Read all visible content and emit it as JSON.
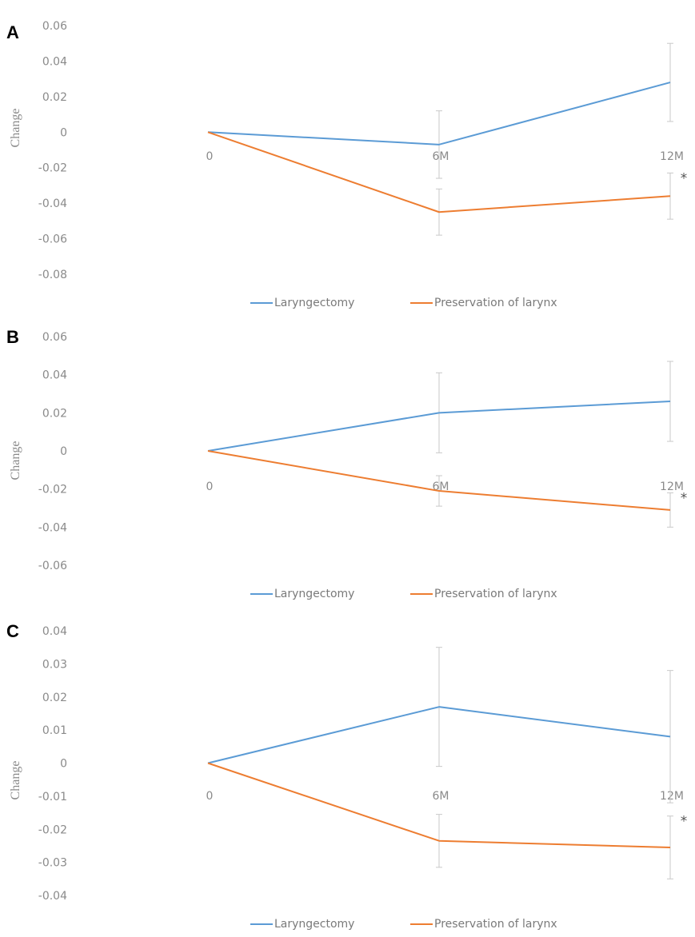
{
  "chart_data": [
    {
      "type": "line",
      "panel": "A",
      "ylabel": "Change",
      "categories": [
        "0",
        "6M",
        "12M"
      ],
      "ylim": [
        -0.08,
        0.06
      ],
      "yticks": [
        "0.06",
        "0.04",
        "0.02",
        "0",
        "-0.02",
        "-0.04",
        "-0.06",
        "-0.08"
      ],
      "series": [
        {
          "name": "Laryngectomy",
          "color": "#5b9bd5",
          "values": [
            0,
            -0.007,
            0.028
          ],
          "err": [
            0,
            0.019,
            0.022
          ]
        },
        {
          "name": "Preservation of larynx",
          "color": "#ed7d31",
          "values": [
            0,
            -0.045,
            -0.036
          ],
          "err": [
            0,
            0.013,
            0.013
          ]
        }
      ],
      "annotation": "*"
    },
    {
      "type": "line",
      "panel": "B",
      "ylabel": "Change",
      "categories": [
        "0",
        "6M",
        "12M"
      ],
      "ylim": [
        -0.06,
        0.06
      ],
      "yticks": [
        "0.06",
        "0.04",
        "0.02",
        "0",
        "-0.02",
        "-0.04",
        "-0.06"
      ],
      "series": [
        {
          "name": "Laryngectomy",
          "color": "#5b9bd5",
          "values": [
            0,
            0.02,
            0.026
          ],
          "err": [
            0,
            0.021,
            0.021
          ]
        },
        {
          "name": "Preservation of larynx",
          "color": "#ed7d31",
          "values": [
            0,
            -0.021,
            -0.031
          ],
          "err": [
            0,
            0.008,
            0.009
          ]
        }
      ],
      "annotation": "*"
    },
    {
      "type": "line",
      "panel": "C",
      "ylabel": "Change",
      "categories": [
        "0",
        "6M",
        "12M"
      ],
      "ylim": [
        -0.04,
        0.04
      ],
      "yticks": [
        "0.04",
        "0.03",
        "0.02",
        "0.01",
        "0",
        "-0.01",
        "-0.02",
        "-0.03",
        "-0.04"
      ],
      "series": [
        {
          "name": "Laryngectomy",
          "color": "#5b9bd5",
          "values": [
            0,
            0.017,
            0.008
          ],
          "err": [
            0,
            0.018,
            0.02
          ]
        },
        {
          "name": "Preservation of larynx",
          "color": "#ed7d31",
          "values": [
            0,
            -0.0235,
            -0.0255
          ],
          "err": [
            0,
            0.008,
            0.0095
          ]
        }
      ],
      "annotation": "*"
    }
  ]
}
